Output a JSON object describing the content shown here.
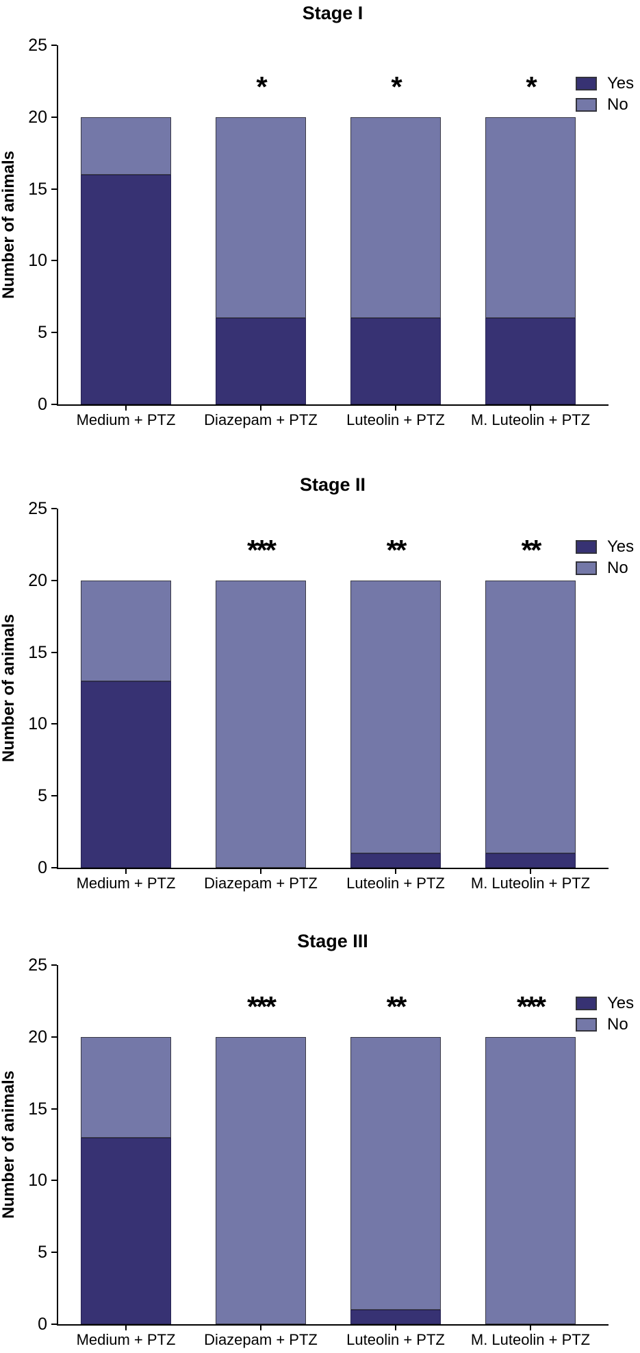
{
  "figure": {
    "ylabel": "Number of animals",
    "legend": {
      "yes_label": "Yes",
      "no_label": "No"
    },
    "colors": {
      "yes_fill": "#373273",
      "no_fill": "#7478A8",
      "axis": "#000000",
      "yes_border": "#262350",
      "no_border": "#3A3A45"
    }
  },
  "chart_data": [
    {
      "type": "bar",
      "stacked": true,
      "title": "Stage I",
      "xlabel": "",
      "ylabel": "Number of animals",
      "ylim": [
        0,
        25
      ],
      "yticks": [
        0,
        5,
        10,
        15,
        20,
        25
      ],
      "grid": false,
      "legend_position": "top-right",
      "categories": [
        "Medium + PTZ",
        "Diazepam + PTZ",
        "Luteolin + PTZ",
        "M. Luteolin + PTZ"
      ],
      "series": [
        {
          "name": "Yes",
          "values": [
            16,
            6,
            6,
            6
          ]
        },
        {
          "name": "No",
          "values": [
            4,
            14,
            14,
            14
          ]
        }
      ],
      "annotations": [
        "",
        "*",
        "*",
        "*"
      ]
    },
    {
      "type": "bar",
      "stacked": true,
      "title": "Stage II",
      "xlabel": "",
      "ylabel": "Number of animals",
      "ylim": [
        0,
        25
      ],
      "yticks": [
        0,
        5,
        10,
        15,
        20,
        25
      ],
      "grid": false,
      "legend_position": "top-right",
      "categories": [
        "Medium + PTZ",
        "Diazepam + PTZ",
        "Luteolin + PTZ",
        "M. Luteolin + PTZ"
      ],
      "series": [
        {
          "name": "Yes",
          "values": [
            13,
            0,
            1,
            1
          ]
        },
        {
          "name": "No",
          "values": [
            7,
            20,
            19,
            19
          ]
        }
      ],
      "annotations": [
        "",
        "***",
        "**",
        "**"
      ]
    },
    {
      "type": "bar",
      "stacked": true,
      "title": "Stage III",
      "xlabel": "",
      "ylabel": "Number of animals",
      "ylim": [
        0,
        25
      ],
      "yticks": [
        0,
        5,
        10,
        15,
        20,
        25
      ],
      "grid": false,
      "legend_position": "top-right",
      "categories": [
        "Medium + PTZ",
        "Diazepam + PTZ",
        "Luteolin + PTZ",
        "M. Luteolin + PTZ"
      ],
      "series": [
        {
          "name": "Yes",
          "values": [
            13,
            0,
            1,
            0
          ]
        },
        {
          "name": "No",
          "values": [
            7,
            20,
            19,
            20
          ]
        }
      ],
      "annotations": [
        "",
        "***",
        "**",
        "***"
      ]
    }
  ]
}
